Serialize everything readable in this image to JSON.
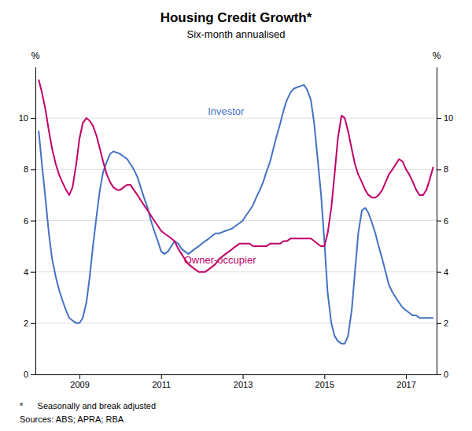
{
  "chart_data": {
    "type": "line",
    "title": "Housing Credit Growth*",
    "subtitle": "Six-month annualised",
    "ylabel": "%",
    "y2label": "%",
    "footnotes": [
      "*      Seasonally and break adjusted",
      "Sources: ABS; APRA; RBA"
    ],
    "xlim": [
      2007.92,
      2017.75
    ],
    "xticks": [
      2009,
      2011,
      2013,
      2015,
      2017
    ],
    "ylim": [
      0,
      12
    ],
    "yticks": [
      0,
      2,
      4,
      6,
      8,
      10
    ],
    "y2lim": [
      0,
      12
    ],
    "y2ticks": [
      0,
      2,
      4,
      6,
      8,
      10
    ],
    "grid": true,
    "x": [
      2008.0,
      2008.08,
      2008.17,
      2008.25,
      2008.33,
      2008.42,
      2008.5,
      2008.58,
      2008.67,
      2008.75,
      2008.83,
      2008.92,
      2009.0,
      2009.08,
      2009.17,
      2009.25,
      2009.33,
      2009.42,
      2009.5,
      2009.58,
      2009.67,
      2009.75,
      2009.83,
      2009.92,
      2010.0,
      2010.08,
      2010.17,
      2010.25,
      2010.33,
      2010.42,
      2010.5,
      2010.58,
      2010.67,
      2010.75,
      2010.83,
      2010.92,
      2011.0,
      2011.08,
      2011.17,
      2011.25,
      2011.33,
      2011.42,
      2011.5,
      2011.58,
      2011.67,
      2011.75,
      2011.83,
      2011.92,
      2012.0,
      2012.08,
      2012.17,
      2012.25,
      2012.33,
      2012.42,
      2012.5,
      2012.58,
      2012.67,
      2012.75,
      2012.83,
      2012.92,
      2013.0,
      2013.08,
      2013.17,
      2013.25,
      2013.33,
      2013.42,
      2013.5,
      2013.58,
      2013.67,
      2013.75,
      2013.83,
      2013.92,
      2014.0,
      2014.08,
      2014.17,
      2014.25,
      2014.33,
      2014.42,
      2014.5,
      2014.58,
      2014.67,
      2014.75,
      2014.83,
      2014.92,
      2015.0,
      2015.08,
      2015.17,
      2015.25,
      2015.33,
      2015.42,
      2015.5,
      2015.58,
      2015.67,
      2015.75,
      2015.83,
      2015.92,
      2016.0,
      2016.08,
      2016.17,
      2016.25,
      2016.33,
      2016.42,
      2016.5,
      2016.58,
      2016.67,
      2016.75,
      2016.83,
      2016.92,
      2017.0,
      2017.08,
      2017.17,
      2017.25,
      2017.33,
      2017.42,
      2017.5,
      2017.58,
      2017.67
    ],
    "series": [
      {
        "name": "Investor",
        "color": "#4472C4",
        "values": [
          9.5,
          8.2,
          6.8,
          5.5,
          4.5,
          3.8,
          3.3,
          2.9,
          2.5,
          2.2,
          2.1,
          2.0,
          2.0,
          2.2,
          2.8,
          3.8,
          5.0,
          6.2,
          7.2,
          7.9,
          8.3,
          8.6,
          8.7,
          8.65,
          8.6,
          8.5,
          8.4,
          8.2,
          8.0,
          7.7,
          7.3,
          6.9,
          6.5,
          6.0,
          5.6,
          5.2,
          4.8,
          4.7,
          4.8,
          5.0,
          5.2,
          5.1,
          4.9,
          4.8,
          4.7,
          4.8,
          4.9,
          5.0,
          5.1,
          5.2,
          5.3,
          5.4,
          5.5,
          5.5,
          5.55,
          5.6,
          5.65,
          5.7,
          5.8,
          5.9,
          6.0,
          6.2,
          6.4,
          6.6,
          6.9,
          7.2,
          7.5,
          7.9,
          8.3,
          8.8,
          9.3,
          9.8,
          10.3,
          10.7,
          11.0,
          11.15,
          11.2,
          11.25,
          11.3,
          11.1,
          10.7,
          9.8,
          8.5,
          7.0,
          5.2,
          3.2,
          2.0,
          1.5,
          1.3,
          1.2,
          1.2,
          1.5,
          2.5,
          4.0,
          5.5,
          6.4,
          6.5,
          6.3,
          5.9,
          5.5,
          5.0,
          4.5,
          4.0,
          3.5,
          3.2,
          3.0,
          2.8,
          2.6,
          2.5,
          2.4,
          2.3,
          2.3,
          2.2,
          2.2,
          2.2,
          2.2,
          2.2
        ]
      },
      {
        "name": "Owner-occupier",
        "color": "#C0006A",
        "values": [
          11.5,
          11.0,
          10.3,
          9.5,
          8.8,
          8.2,
          7.8,
          7.5,
          7.2,
          7.0,
          7.3,
          8.2,
          9.2,
          9.8,
          10.0,
          9.9,
          9.7,
          9.3,
          8.8,
          8.3,
          7.8,
          7.5,
          7.3,
          7.2,
          7.2,
          7.3,
          7.4,
          7.4,
          7.2,
          7.0,
          6.8,
          6.6,
          6.4,
          6.2,
          6.0,
          5.8,
          5.6,
          5.5,
          5.4,
          5.3,
          5.2,
          4.9,
          4.7,
          4.5,
          4.3,
          4.2,
          4.1,
          4.0,
          4.0,
          4.0,
          4.1,
          4.2,
          4.3,
          4.5,
          4.6,
          4.7,
          4.8,
          4.9,
          5.0,
          5.1,
          5.1,
          5.1,
          5.1,
          5.0,
          5.0,
          5.0,
          5.0,
          5.0,
          5.1,
          5.1,
          5.1,
          5.1,
          5.2,
          5.2,
          5.3,
          5.3,
          5.3,
          5.3,
          5.3,
          5.3,
          5.3,
          5.2,
          5.1,
          5.0,
          5.0,
          5.5,
          6.5,
          7.8,
          9.2,
          10.1,
          10.0,
          9.5,
          8.8,
          8.2,
          7.8,
          7.5,
          7.2,
          7.0,
          6.9,
          6.9,
          7.0,
          7.2,
          7.5,
          7.8,
          8.0,
          8.2,
          8.4,
          8.3,
          8.0,
          7.8,
          7.5,
          7.2,
          7.0,
          7.0,
          7.2,
          7.6,
          8.1
        ]
      }
    ]
  }
}
